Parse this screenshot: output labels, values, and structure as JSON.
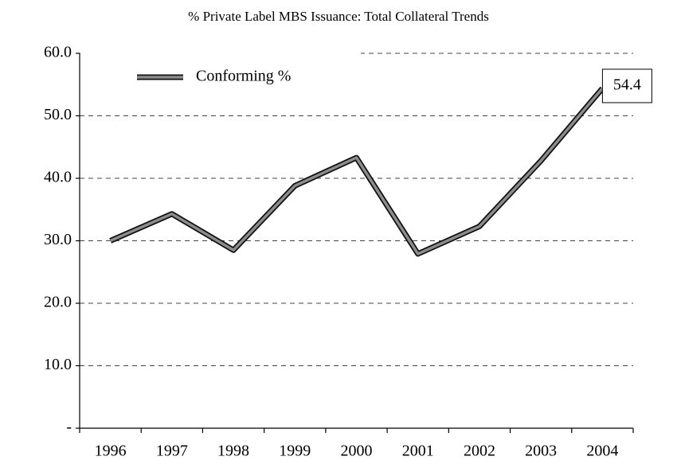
{
  "chart_data": {
    "type": "line",
    "title": "% Private Label MBS Issuance: Total Collateral Trends",
    "categories": [
      "1996",
      "1997",
      "1998",
      "1999",
      "2000",
      "2001",
      "2002",
      "2003",
      "2004"
    ],
    "series": [
      {
        "name": "Conforming %",
        "color": "#8c8c8c",
        "values": [
          30.0,
          34.3,
          28.5,
          38.8,
          43.3,
          27.9,
          32.3,
          42.8,
          54.4
        ]
      }
    ],
    "ylim": [
      0,
      60
    ],
    "yticks": [
      {
        "value": 0,
        "label": "-"
      },
      {
        "value": 10,
        "label": "10.0"
      },
      {
        "value": 20,
        "label": "20.0"
      },
      {
        "value": 30,
        "label": "30.0"
      },
      {
        "value": 40,
        "label": "40.0"
      },
      {
        "value": 50,
        "label": "50.0"
      },
      {
        "value": 60,
        "label": "60.0"
      }
    ],
    "grid": true,
    "legend": "top-left"
  }
}
